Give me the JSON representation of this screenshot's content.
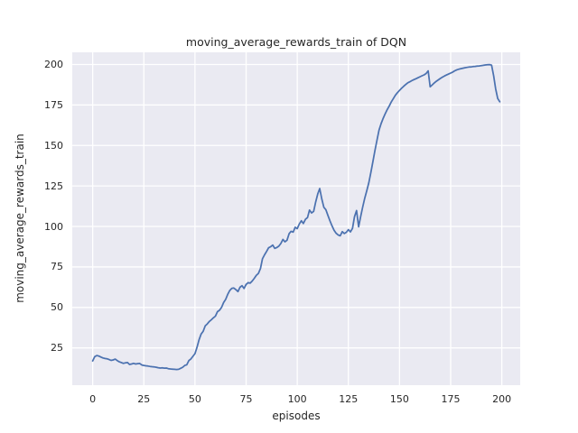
{
  "chart_data": {
    "type": "line",
    "title": "moving_average_rewards_train of DQN",
    "xlabel": "episodes",
    "ylabel": "moving_average_rewards_train",
    "x_ticks": [
      0,
      25,
      50,
      75,
      100,
      125,
      150,
      175,
      200
    ],
    "y_ticks": [
      25,
      50,
      75,
      100,
      125,
      150,
      175,
      200
    ],
    "xlim": [
      -10,
      209
    ],
    "ylim": [
      2,
      207.5
    ],
    "grid": true,
    "legend": "none",
    "style": {
      "figure_background": "#ffffff",
      "axes_background": "#eaeaf2",
      "grid_color": "#ffffff",
      "line_color": "#4c72b0",
      "text_color": "#262626"
    },
    "series": [
      {
        "name": "moving_average_rewards_train",
        "x_start": 0,
        "x_step": 1,
        "values": [
          17.0,
          19.6,
          20.3,
          20.0,
          19.4,
          18.8,
          18.5,
          18.3,
          17.8,
          17.3,
          17.6,
          18.1,
          17.2,
          16.4,
          16.0,
          15.5,
          15.8,
          16.0,
          14.8,
          15.1,
          15.5,
          15.1,
          15.3,
          15.4,
          14.5,
          14.2,
          14.0,
          13.8,
          13.6,
          13.4,
          13.3,
          13.1,
          12.8,
          12.6,
          12.7,
          12.5,
          12.6,
          12.2,
          12.0,
          11.9,
          11.8,
          11.7,
          11.8,
          12.4,
          13.1,
          14.2,
          14.6,
          17.2,
          18.2,
          19.8,
          21.5,
          25.5,
          30.0,
          33.6,
          35.2,
          38.6,
          39.8,
          41.3,
          42.4,
          43.6,
          44.6,
          47.4,
          48.3,
          50.0,
          53.0,
          55.0,
          58.0,
          60.5,
          61.8,
          62.0,
          61.0,
          59.8,
          62.4,
          63.4,
          61.7,
          64.2,
          65.3,
          65.0,
          66.3,
          68.0,
          69.8,
          71.0,
          74.0,
          80.0,
          82.5,
          84.6,
          86.8,
          87.5,
          88.5,
          86.5,
          87.0,
          87.8,
          89.5,
          92.0,
          90.5,
          91.5,
          95.5,
          97.0,
          96.5,
          99.5,
          98.6,
          101.5,
          103.5,
          101.8,
          104.4,
          105.5,
          110.1,
          108.3,
          109.3,
          115.0,
          120.0,
          123.4,
          117.0,
          111.8,
          110.4,
          106.8,
          103.4,
          100.4,
          97.6,
          95.8,
          94.8,
          94.2,
          96.8,
          95.6,
          96.4,
          98.0,
          96.6,
          98.8,
          106.0,
          109.8,
          99.8,
          106.0,
          112.0,
          117.5,
          122.0,
          127.0,
          133.5,
          140.0,
          147.0,
          153.5,
          159.5,
          163.5,
          166.8,
          169.6,
          172.2,
          174.5,
          176.9,
          179.0,
          181.0,
          182.6,
          184.0,
          185.3,
          186.5,
          187.6,
          188.6,
          189.3,
          190.0,
          190.6,
          191.2,
          191.8,
          192.4,
          193.0,
          193.6,
          194.4,
          196.0,
          186.2,
          187.4,
          188.6,
          189.6,
          190.5,
          191.4,
          192.2,
          192.9,
          193.5,
          194.1,
          194.7,
          195.3,
          196.1,
          196.7,
          197.1,
          197.4,
          197.7,
          198.0,
          198.2,
          198.4,
          198.5,
          198.7,
          198.8,
          199.0,
          199.1,
          199.3,
          199.5,
          199.7,
          199.8,
          199.9,
          199.6,
          193.0,
          185.0,
          179.0,
          177.0
        ]
      }
    ]
  }
}
